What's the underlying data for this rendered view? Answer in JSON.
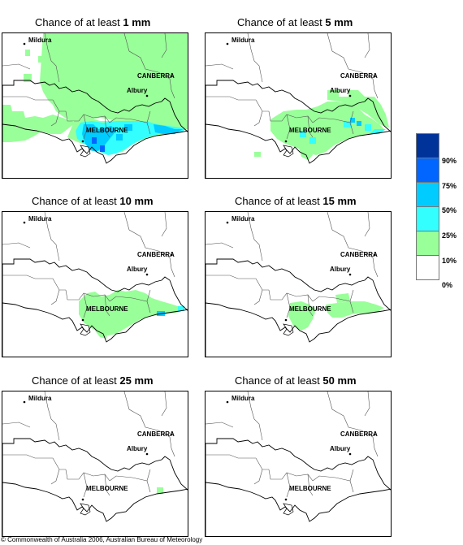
{
  "panels": [
    {
      "prefix": "Chance of at least ",
      "amount": "1 mm"
    },
    {
      "prefix": "Chance of at least ",
      "amount": "5 mm"
    },
    {
      "prefix": "Chance of at least ",
      "amount": "10 mm"
    },
    {
      "prefix": "Chance of at least ",
      "amount": "15 mm"
    },
    {
      "prefix": "Chance of at least ",
      "amount": "25 mm"
    },
    {
      "prefix": "Chance of at least ",
      "amount": "50 mm"
    }
  ],
  "cities": {
    "mildura": "Mildura",
    "canberra": "CANBERRA",
    "albury": "Albury",
    "melbourne": "MELBOURNE"
  },
  "legend": {
    "labels": [
      "90%",
      "75%",
      "50%",
      "25%",
      "10%",
      "0%"
    ],
    "colors": [
      "#003399",
      "#0066ff",
      "#00ccff",
      "#33ffff",
      "#99ff99",
      "#ffffff"
    ]
  },
  "copyright": "© Commonwealth of Australia 2006, Australian Bureau of Meteorology"
}
